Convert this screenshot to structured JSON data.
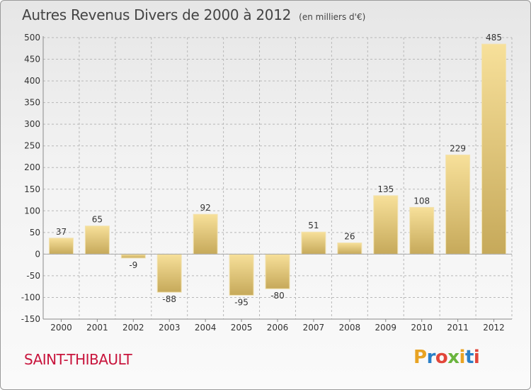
{
  "title": "Autres Revenus Divers de 2000 à 2012",
  "subtitle": "(en milliers d'€)",
  "commune": "SAINT-THIBAULT",
  "logo": {
    "letters": [
      "P",
      "r",
      "o",
      "x",
      "i",
      "t",
      "i"
    ],
    "colors": [
      "#e8a323",
      "#2a7fc7",
      "#e2463a",
      "#6ab43e",
      "#e8a323",
      "#2a7fc7",
      "#e2463a"
    ]
  },
  "colors": {
    "bar_light": "#f5dc92",
    "bar_dark": "#c8ac5e",
    "grid": "#b8b8b8",
    "axis": "#8a8a8a"
  },
  "chart_data": {
    "type": "bar",
    "title": "Autres Revenus Divers de 2000 à 2012",
    "subtitle": "(en milliers d'€)",
    "categories": [
      "2000",
      "2001",
      "2002",
      "2003",
      "2004",
      "2005",
      "2006",
      "2007",
      "2008",
      "2009",
      "2010",
      "2011",
      "2012"
    ],
    "values": [
      37,
      65,
      -9,
      -88,
      92,
      -95,
      -80,
      51,
      26,
      135,
      108,
      229,
      485
    ],
    "labels": [
      "37",
      "65",
      "-9",
      "-88",
      "92",
      "-95",
      "-80",
      "51",
      "26",
      "135",
      "108",
      "229",
      "485"
    ],
    "ylim": [
      -150,
      500
    ],
    "yticks": [
      -150,
      -100,
      -50,
      0,
      50,
      100,
      150,
      200,
      250,
      300,
      350,
      400,
      450,
      500
    ],
    "ytick_labels": [
      "-150",
      "-100",
      "-50",
      "0",
      "50",
      "100",
      "150",
      "200",
      "250",
      "300",
      "350",
      "400",
      "450",
      "500"
    ],
    "grid": true,
    "xlabel": "",
    "ylabel": ""
  }
}
